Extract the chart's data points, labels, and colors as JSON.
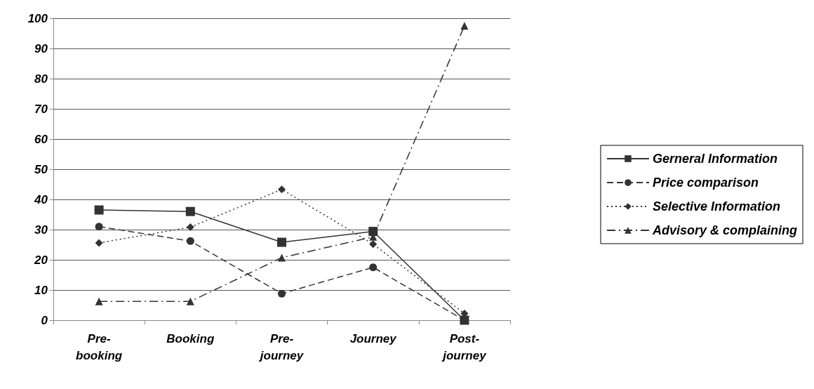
{
  "chart_data": {
    "type": "line",
    "categories": [
      "Pre-booking",
      "Booking",
      "Pre-journey",
      "Journey",
      "Post-journey"
    ],
    "ylim": [
      0,
      100
    ],
    "yticks": [
      0,
      10,
      20,
      30,
      40,
      50,
      60,
      70,
      80,
      90,
      100
    ],
    "grid": "y",
    "legend": "right",
    "series": [
      {
        "name": "Gerneral Information",
        "color": "#333333",
        "values": [
          36.5,
          36,
          25.8,
          29.4,
          0
        ],
        "marker": "square",
        "line_style": "solid"
      },
      {
        "name": "Price comparison",
        "color": "#333333",
        "values": [
          31,
          26.2,
          8.8,
          17.5,
          0
        ],
        "marker": "circle",
        "line_style": "dashed"
      },
      {
        "name": "Selective Information",
        "color": "#333333",
        "values": [
          25.6,
          30.8,
          43.3,
          25.2,
          2.2
        ],
        "marker": "diamond",
        "line_style": "dotted"
      },
      {
        "name": "Advisory & complaining",
        "color": "#333333",
        "values": [
          6.2,
          6.2,
          20.7,
          27.6,
          97.5
        ],
        "marker": "triangle",
        "line_style": "dashdot"
      }
    ]
  }
}
